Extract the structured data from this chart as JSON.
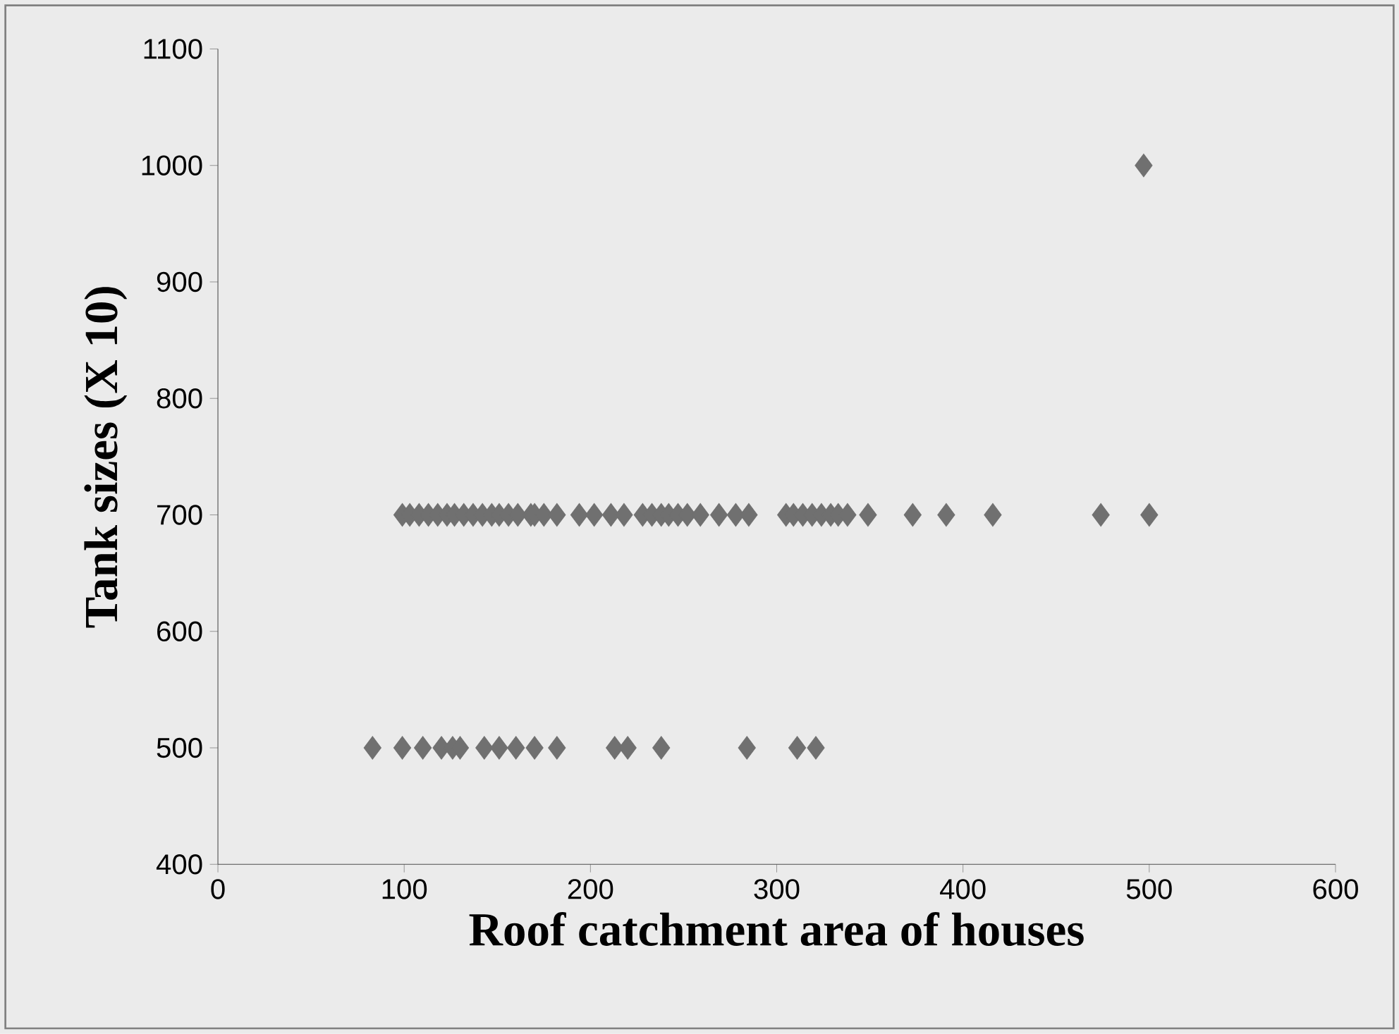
{
  "chart_data": {
    "type": "scatter",
    "xlabel": "Roof catchment area of houses",
    "ylabel": "Tank sizes (X 10)",
    "x": [
      99,
      103,
      108,
      113,
      118,
      123,
      127,
      132,
      137,
      142,
      147,
      151,
      156,
      161,
      168,
      170,
      175,
      182,
      194,
      202,
      211,
      218,
      228,
      233,
      238,
      242,
      247,
      252,
      259,
      269,
      278,
      285,
      305,
      309,
      314,
      319,
      324,
      329,
      333,
      338,
      349,
      373,
      391,
      416,
      474,
      500,
      83,
      99,
      110,
      120,
      126,
      130,
      143,
      151,
      160,
      170,
      182,
      213,
      220,
      238,
      284,
      311,
      321,
      497
    ],
    "values": [
      700,
      700,
      700,
      700,
      700,
      700,
      700,
      700,
      700,
      700,
      700,
      700,
      700,
      700,
      700,
      700,
      700,
      700,
      700,
      700,
      700,
      700,
      700,
      700,
      700,
      700,
      700,
      700,
      700,
      700,
      700,
      700,
      700,
      700,
      700,
      700,
      700,
      700,
      700,
      700,
      700,
      700,
      700,
      700,
      700,
      700,
      500,
      500,
      500,
      500,
      500,
      500,
      500,
      500,
      500,
      500,
      500,
      500,
      500,
      500,
      500,
      500,
      500,
      1000
    ],
    "color": "#707070",
    "marker": "diamond",
    "grid": false,
    "xlim": [
      0,
      600
    ],
    "ylim": [
      400,
      1100
    ],
    "xticks": [
      0,
      100,
      200,
      300,
      400,
      500,
      600
    ],
    "yticks": [
      400,
      500,
      600,
      700,
      800,
      900,
      1000,
      1100
    ]
  }
}
